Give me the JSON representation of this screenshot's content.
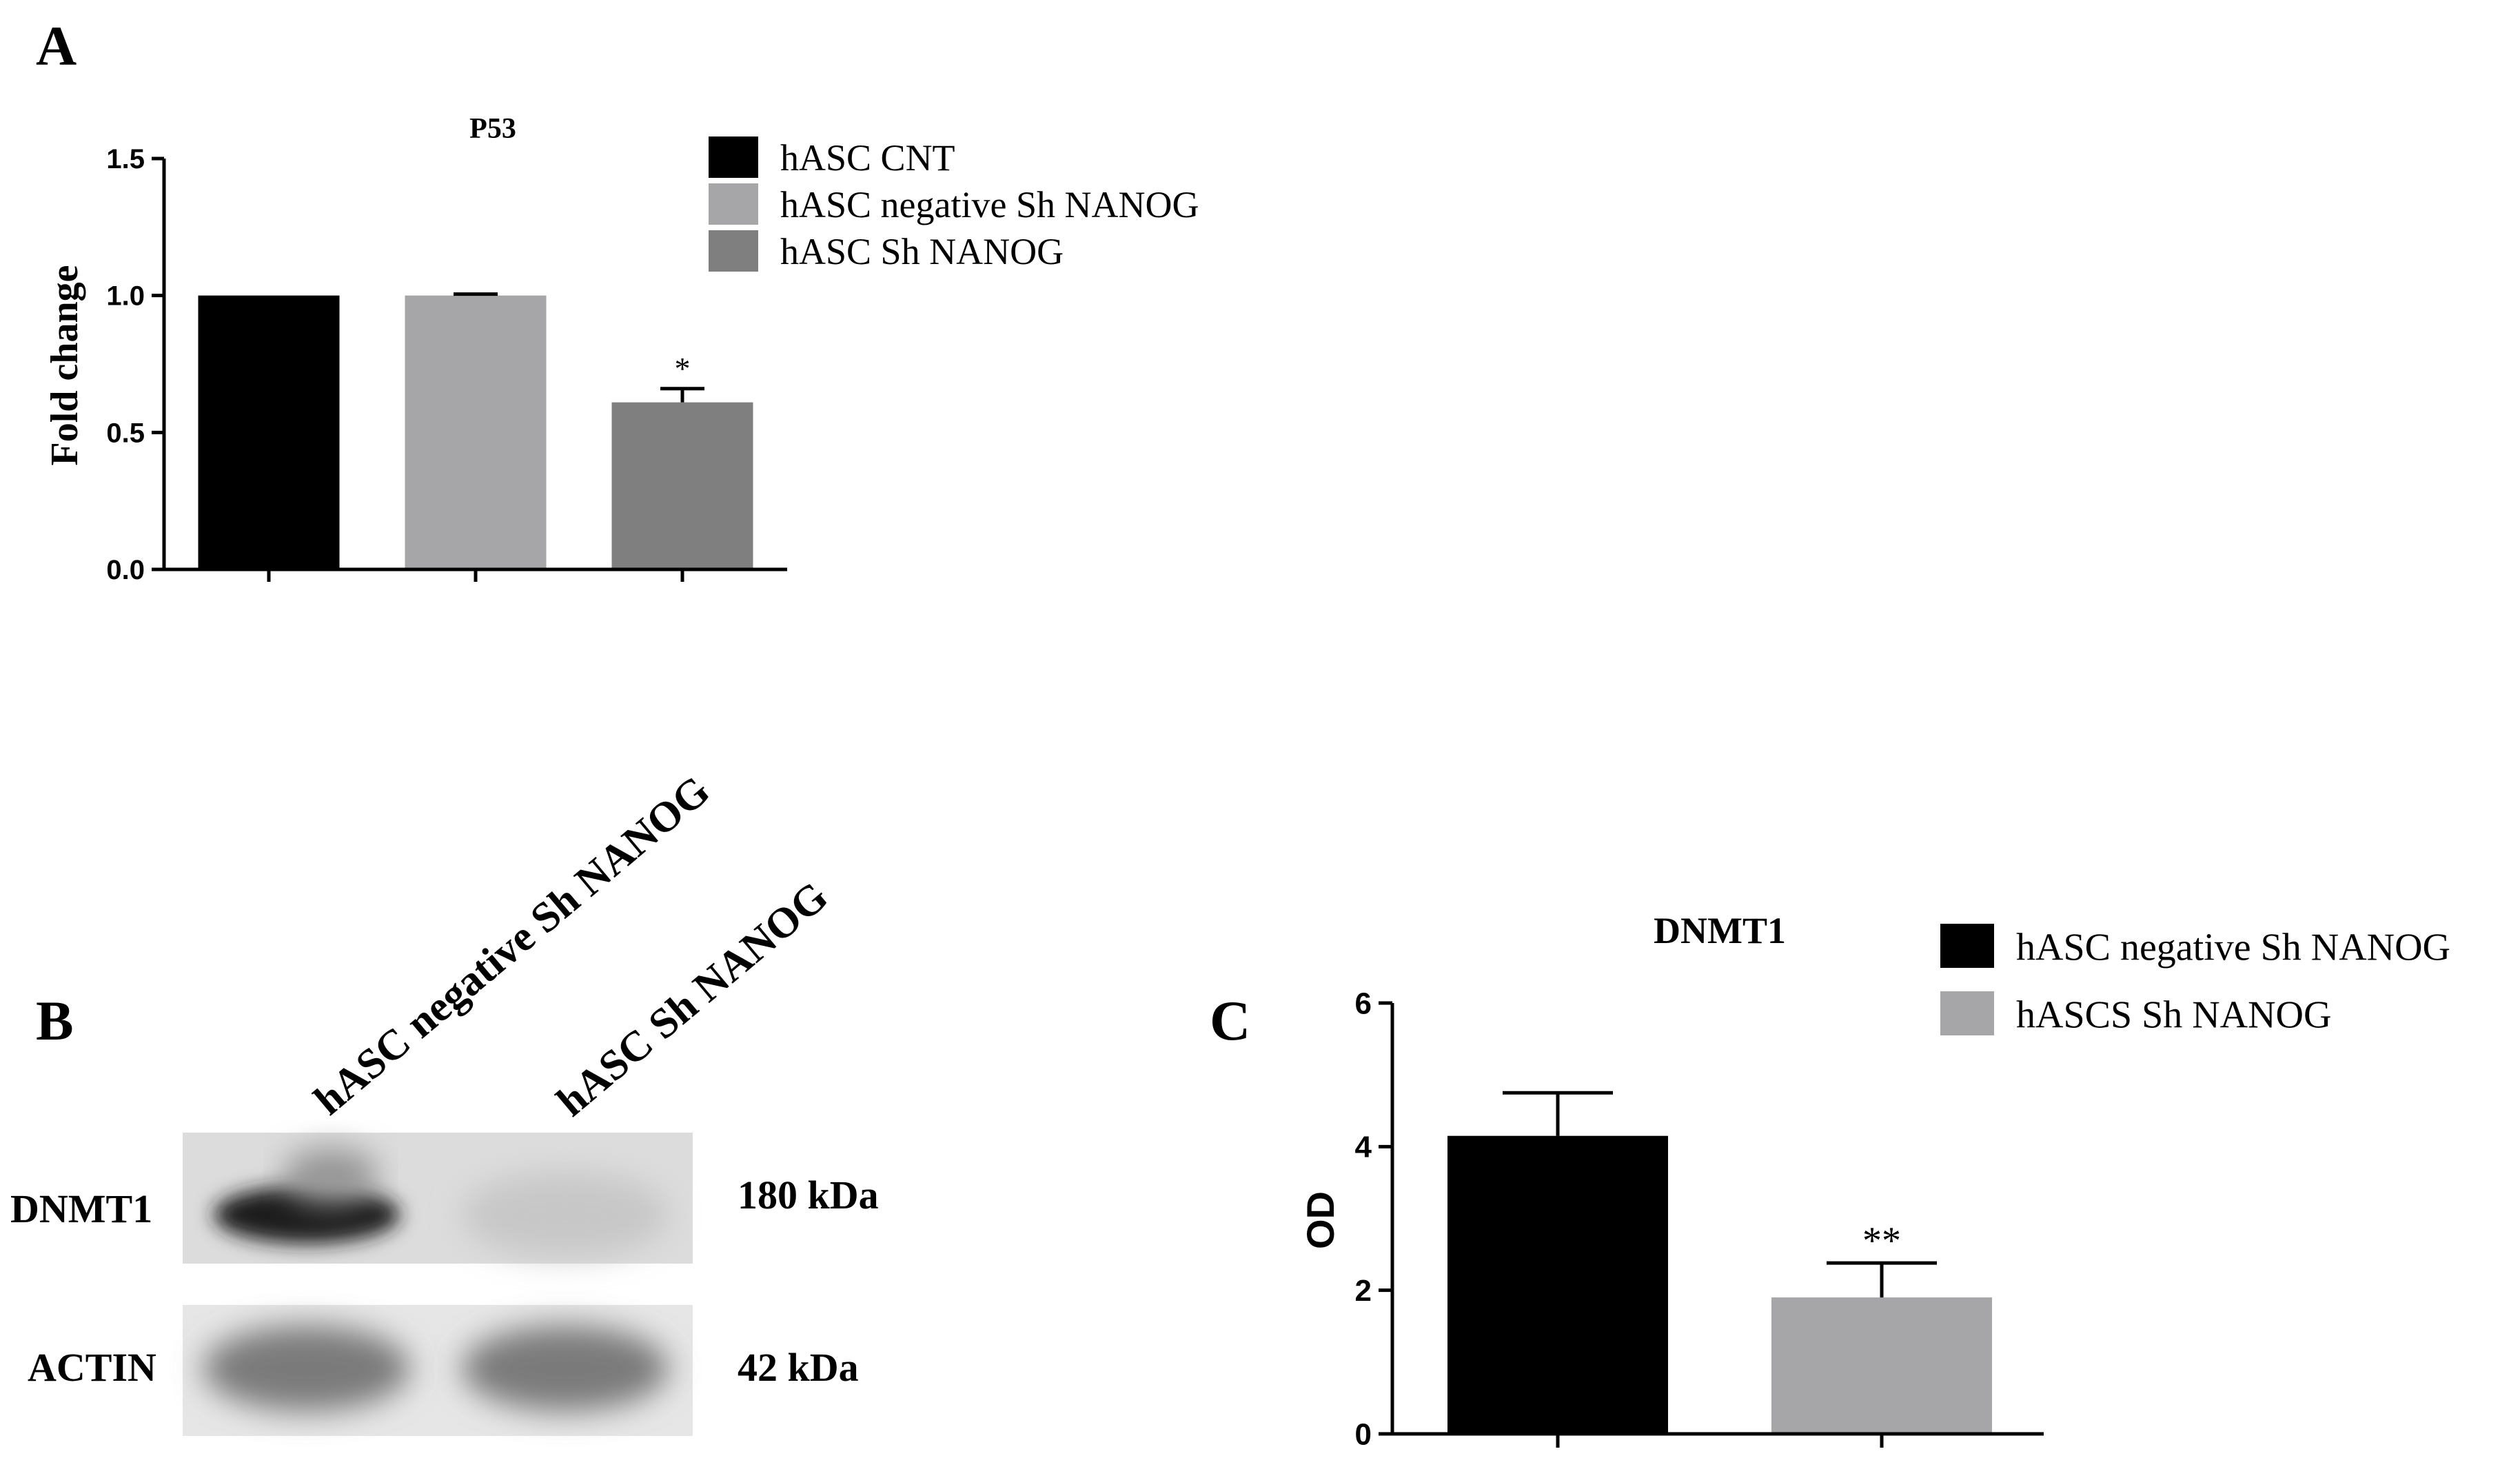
{
  "panels": {
    "a": {
      "letter": "A"
    },
    "b": {
      "letter": "B",
      "lane_labels": [
        "hASC negative Sh NANOG",
        "hASC Sh NANOG"
      ],
      "rows": [
        {
          "label": "DNMT1",
          "size": "180 kDa",
          "band_intensity": [
            0.92,
            0.12
          ]
        },
        {
          "label": "ACTIN",
          "size": "42 kDa",
          "band_intensity": [
            0.48,
            0.48
          ]
        }
      ]
    },
    "c": {
      "letter": "C"
    }
  },
  "chart_data": [
    {
      "type": "bar",
      "title": "P53",
      "ylabel": "Fold change",
      "xlabel": "",
      "categories": [
        "hASC CNT",
        "hASC negative Sh NANOG",
        "hASC Sh NANOG"
      ],
      "values": [
        1.0,
        1.0,
        0.61
      ],
      "errors": [
        0.0,
        0.005,
        0.05
      ],
      "significance": [
        "",
        "",
        "*"
      ],
      "colors": [
        "#000000",
        "#a6a6a8",
        "#7f7f7f"
      ],
      "ylim": [
        0,
        1.5
      ],
      "yticks": [
        "0.0",
        "0.5",
        "1.0",
        "1.5"
      ],
      "legend": [
        "hASC CNT",
        "hASC negative Sh NANOG",
        "hASC Sh NANOG"
      ],
      "legend_position": "right"
    },
    {
      "type": "bar",
      "title": "DNMT1",
      "ylabel": "OD",
      "xlabel": "",
      "categories": [
        "hASC negative Sh NANOG",
        "hASCS Sh NANOG"
      ],
      "values": [
        4.15,
        1.9
      ],
      "errors": [
        0.6,
        0.48
      ],
      "significance": [
        "",
        "**"
      ],
      "colors": [
        "#000000",
        "#a6a6a8"
      ],
      "ylim": [
        0,
        6
      ],
      "yticks": [
        "0",
        "2",
        "4",
        "6"
      ],
      "legend": [
        "hASC negative Sh NANOG",
        "hASCS Sh NANOG"
      ],
      "legend_position": "top-right"
    }
  ]
}
